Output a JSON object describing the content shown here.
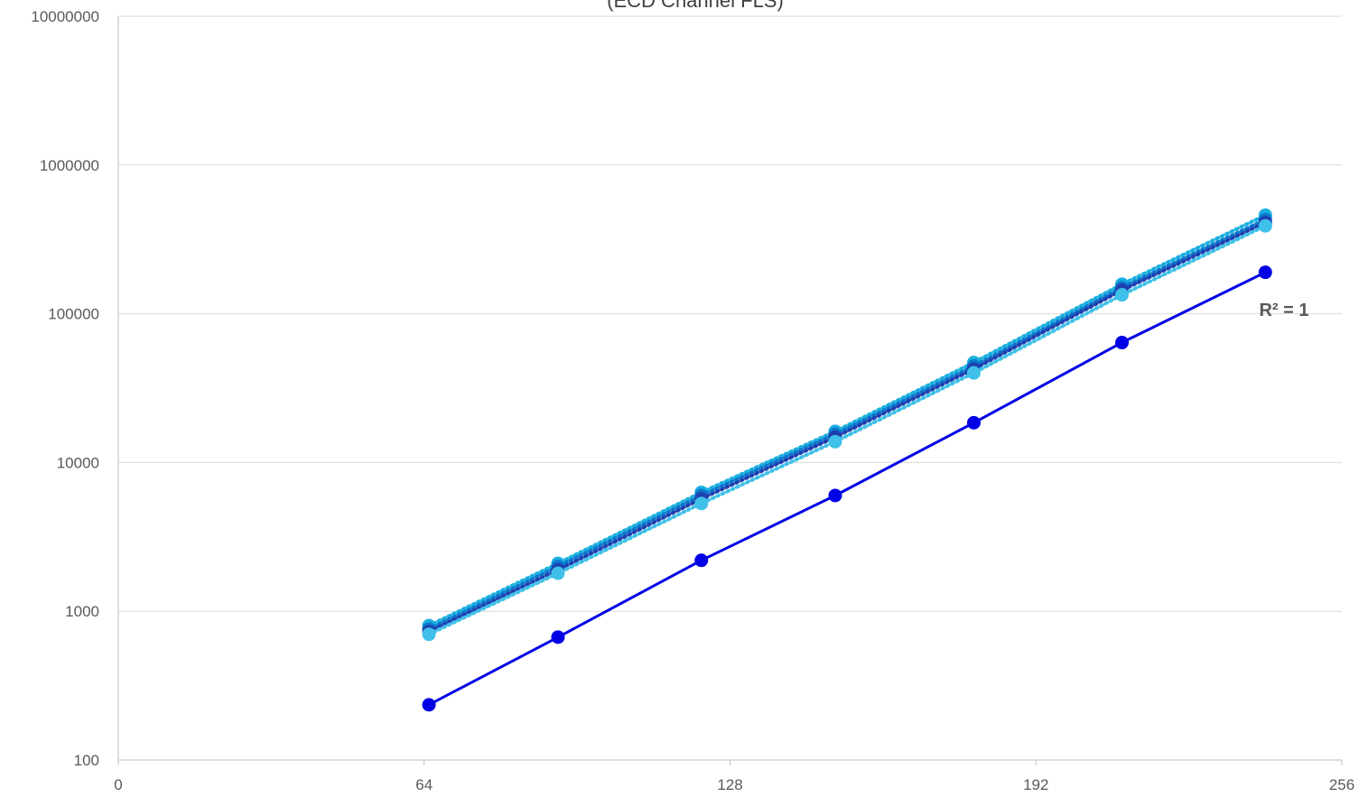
{
  "chart_data": {
    "type": "scatter",
    "title": "(ECD Channel FLS)",
    "xlabel": "",
    "ylabel": "",
    "x_scale": "linear",
    "y_scale": "log",
    "xlim": [
      0,
      256
    ],
    "ylim": [
      100,
      10000000
    ],
    "x_ticks": [
      "0",
      "64",
      "128",
      "192",
      "256"
    ],
    "y_ticks": [
      "100",
      "1000",
      "10000",
      "100000",
      "1000000",
      "10000000"
    ],
    "grid": true,
    "legend": "none",
    "annotations": [
      {
        "text": "R² = 1"
      }
    ],
    "colors": {
      "fit_series": "#0000e6",
      "upper_series": [
        "#1ab0e0",
        "#0b78cc",
        "#1e3fb0",
        "#3fc0e8"
      ],
      "gridline": "#d9d9d9",
      "axis": "#bfbfbf"
    },
    "series": [
      {
        "style": "solid",
        "x": [
          65,
          92,
          122,
          150,
          179,
          210,
          240
        ],
        "y": [
          235,
          670,
          2200,
          6000,
          18500,
          64000,
          190000
        ]
      },
      {
        "style": "dotted",
        "x": [
          65,
          92,
          122,
          150,
          179,
          210,
          240
        ],
        "y": [
          800,
          2100,
          6300,
          16200,
          47000,
          158000,
          460000
        ]
      },
      {
        "style": "dotted",
        "x": [
          65,
          92,
          122,
          150,
          179,
          210,
          240
        ],
        "y": [
          760,
          2000,
          6000,
          15500,
          44500,
          150000,
          430000
        ]
      },
      {
        "style": "dotted",
        "x": [
          65,
          92,
          122,
          150,
          179,
          210,
          240
        ],
        "y": [
          730,
          1900,
          5700,
          14800,
          42500,
          144000,
          410000
        ]
      },
      {
        "style": "dotted",
        "x": [
          65,
          92,
          122,
          150,
          179,
          210,
          240
        ],
        "y": [
          700,
          1800,
          5300,
          13800,
          40000,
          134000,
          390000
        ]
      }
    ]
  }
}
